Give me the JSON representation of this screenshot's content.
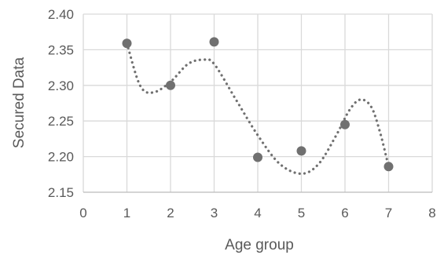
{
  "chart_data": {
    "type": "scatter",
    "title": "",
    "xlabel": "Age group",
    "ylabel": "Secured Data",
    "xlim": [
      0,
      8
    ],
    "ylim": [
      2.15,
      2.4
    ],
    "x_ticks": [
      "0",
      "1",
      "2",
      "3",
      "4",
      "5",
      "6",
      "7",
      "8"
    ],
    "y_ticks": [
      "2.15",
      "2.20",
      "2.25",
      "2.30",
      "2.35",
      "2.40"
    ],
    "grid": true,
    "legend": "none",
    "series": [
      {
        "x": [
          1,
          2,
          3,
          4,
          5,
          6,
          7
        ],
        "y": [
          2.359,
          2.3,
          2.361,
          2.199,
          2.208,
          2.245,
          2.186
        ],
        "marker_color": "#707070"
      }
    ],
    "trendline": {
      "type": "polynomial",
      "style": "dotted",
      "color": "#707070",
      "points": [
        [
          1.0,
          2.359
        ],
        [
          1.3,
          2.3
        ],
        [
          1.6,
          2.29
        ],
        [
          2.0,
          2.305
        ],
        [
          2.4,
          2.33
        ],
        [
          2.75,
          2.336
        ],
        [
          3.0,
          2.33
        ],
        [
          3.5,
          2.28
        ],
        [
          4.0,
          2.23
        ],
        [
          4.5,
          2.19
        ],
        [
          5.0,
          2.176
        ],
        [
          5.4,
          2.19
        ],
        [
          5.8,
          2.23
        ],
        [
          6.1,
          2.265
        ],
        [
          6.35,
          2.28
        ],
        [
          6.6,
          2.27
        ],
        [
          6.8,
          2.235
        ],
        [
          7.0,
          2.186
        ]
      ]
    },
    "colors": {
      "grid": "#d9d9d9",
      "axis": "#bfbfbf",
      "text": "#595959",
      "marker": "#707070"
    }
  }
}
